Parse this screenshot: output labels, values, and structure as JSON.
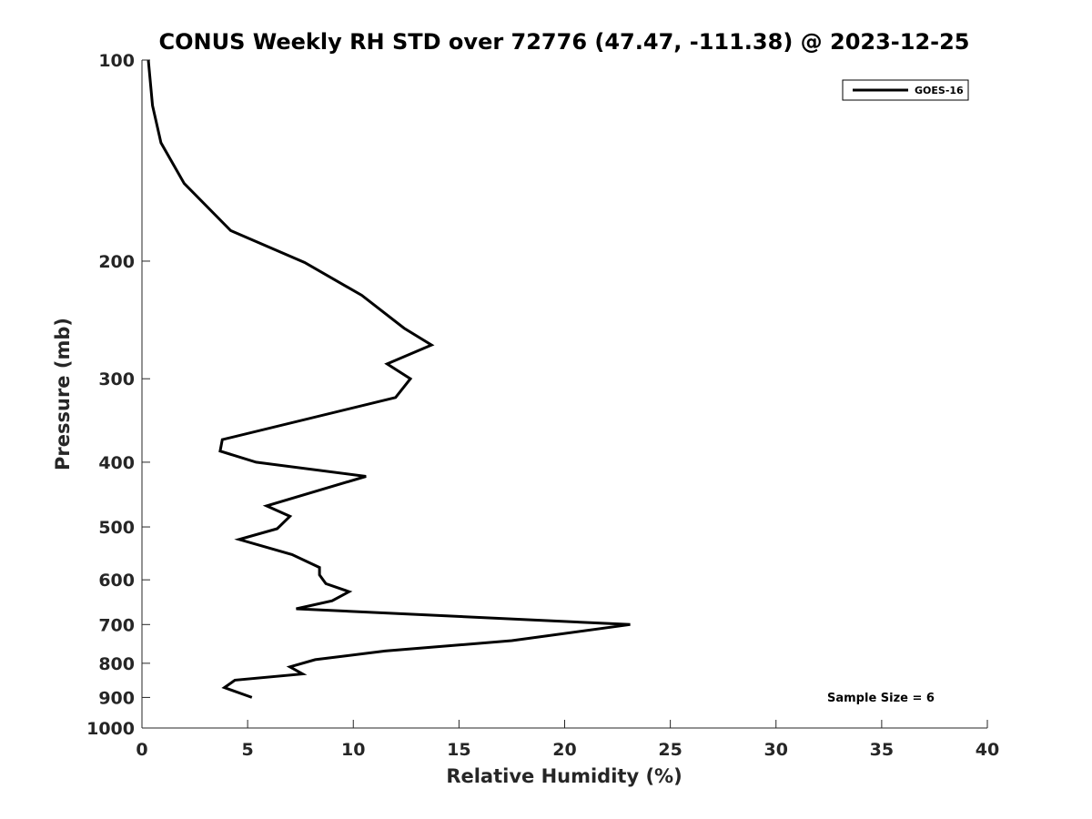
{
  "chart_data": {
    "type": "line",
    "title": "CONUS Weekly RH STD over 72776 (47.47, -111.38) @ 2023-12-25",
    "xlabel": "Relative Humidity (%)",
    "ylabel": "Pressure (mb)",
    "xlim": [
      0,
      40
    ],
    "ylim": [
      100,
      1000
    ],
    "y_scale": "log",
    "y_reversed": true,
    "x_ticks": [
      0,
      5,
      10,
      15,
      20,
      25,
      30,
      35,
      40
    ],
    "y_ticks": [
      100,
      200,
      300,
      400,
      500,
      600,
      700,
      800,
      900,
      1000
    ],
    "grid": false,
    "legend_position": "top-right",
    "annotation": "Sample Size = 6",
    "line_color": "#000000",
    "series": [
      {
        "name": "GOES-16",
        "points": [
          {
            "x": 0.3,
            "y": 100
          },
          {
            "x": 0.5,
            "y": 117
          },
          {
            "x": 0.9,
            "y": 133
          },
          {
            "x": 2.0,
            "y": 153
          },
          {
            "x": 4.2,
            "y": 180
          },
          {
            "x": 7.7,
            "y": 201
          },
          {
            "x": 10.4,
            "y": 225
          },
          {
            "x": 12.4,
            "y": 252
          },
          {
            "x": 13.7,
            "y": 267
          },
          {
            "x": 11.6,
            "y": 285
          },
          {
            "x": 12.7,
            "y": 300
          },
          {
            "x": 12.0,
            "y": 320
          },
          {
            "x": 3.8,
            "y": 370
          },
          {
            "x": 3.7,
            "y": 385
          },
          {
            "x": 5.4,
            "y": 400
          },
          {
            "x": 10.6,
            "y": 420
          },
          {
            "x": 5.9,
            "y": 465
          },
          {
            "x": 7.0,
            "y": 482
          },
          {
            "x": 6.4,
            "y": 503
          },
          {
            "x": 4.6,
            "y": 522
          },
          {
            "x": 7.1,
            "y": 550
          },
          {
            "x": 8.4,
            "y": 575
          },
          {
            "x": 8.4,
            "y": 590
          },
          {
            "x": 8.7,
            "y": 608
          },
          {
            "x": 9.8,
            "y": 625
          },
          {
            "x": 9.0,
            "y": 645
          },
          {
            "x": 7.3,
            "y": 663
          },
          {
            "x": 23.1,
            "y": 700
          },
          {
            "x": 17.5,
            "y": 740
          },
          {
            "x": 11.5,
            "y": 767
          },
          {
            "x": 8.2,
            "y": 790
          },
          {
            "x": 7.0,
            "y": 810
          },
          {
            "x": 7.6,
            "y": 830
          },
          {
            "x": 4.4,
            "y": 848
          },
          {
            "x": 3.9,
            "y": 870
          },
          {
            "x": 5.2,
            "y": 900
          }
        ]
      }
    ]
  }
}
